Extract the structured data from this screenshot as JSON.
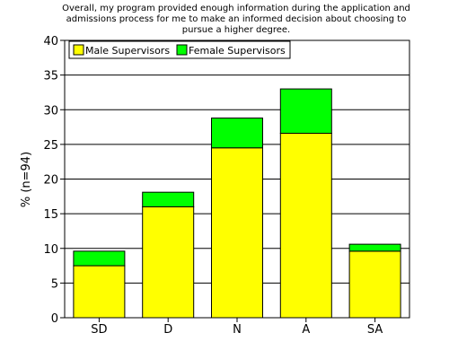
{
  "chart_data": {
    "type": "bar",
    "stacked": true,
    "title_lines": [
      "Overall, my program provided enough information during the application and",
      "admissions process for me to make an informed decision about choosing to",
      "pursue a higher degree."
    ],
    "xlabel": "",
    "ylabel": "% (n=94)",
    "ylim": [
      0,
      40
    ],
    "yticks": [
      0,
      5,
      10,
      15,
      20,
      25,
      30,
      35,
      40
    ],
    "grid": true,
    "legend_position": "top-left",
    "categories": [
      "SD",
      "D",
      "N",
      "A",
      "SA"
    ],
    "series": [
      {
        "name": "Male Supervisors",
        "color": "#ffff00",
        "values": [
          7.5,
          16.0,
          24.5,
          26.6,
          9.6
        ]
      },
      {
        "name": "Female Supervisors",
        "color": "#00ff00",
        "values": [
          2.1,
          2.1,
          4.3,
          6.4,
          1.0
        ]
      }
    ]
  }
}
